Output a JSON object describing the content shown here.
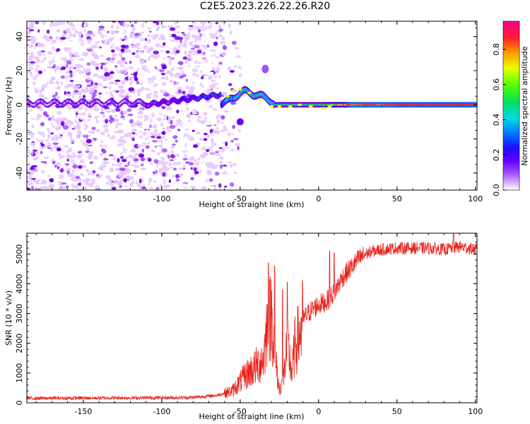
{
  "figure": {
    "title": "C2E5.2023.226.22.26.R20"
  },
  "colors": {
    "snr_line": "#e8201a",
    "axis": "#000000",
    "colormap": [
      "#ffffff",
      "#e6c8ff",
      "#a050ff",
      "#7000e8",
      "#2a00ff",
      "#0060ff",
      "#00d0ff",
      "#00e070",
      "#40ff00",
      "#e8ff00",
      "#ff8000",
      "#ff2040",
      "#ff0080"
    ]
  },
  "chart_data": [
    {
      "type": "heatmap",
      "title": "",
      "xlabel": "Height of straight line (km)",
      "ylabel": "Frequency (Hz)",
      "xlim": [
        -186,
        101
      ],
      "ylim": [
        -50,
        49
      ],
      "xticks": [
        -150,
        -100,
        -50,
        0,
        50,
        100
      ],
      "yticks": [
        -40,
        -20,
        0,
        20,
        40
      ],
      "colorbar": {
        "label": "Normalized spectral amplitude",
        "range": [
          0,
          0.96
        ],
        "ticks": [
          0.0,
          0.2,
          0.4,
          0.6,
          0.8
        ]
      },
      "features": {
        "noise_region_x": [
          -186,
          -62
        ],
        "noise_amplitude_range": [
          0.05,
          0.35
        ],
        "carrier_frequency_hz": 0,
        "carrier_amplitude_range_x": [
          [
            -100,
            0.2
          ],
          [
            -50,
            0.5
          ],
          [
            -30,
            0.55
          ],
          [
            0,
            0.6
          ],
          [
            20,
            0.85
          ],
          [
            100,
            0.92
          ]
        ],
        "wavy_segment_x": [
          -62,
          -28
        ],
        "wavy_segment_peak_freq_hz": 9,
        "echo_blob": {
          "x": -34,
          "freq_hz": 21
        },
        "echo_blob2": {
          "x": -50,
          "freq_hz": -10
        }
      }
    },
    {
      "type": "line",
      "title": "",
      "xlabel": "Height of straight line (km)",
      "ylabel": "SNR (10 * v/v)",
      "xlim": [
        -186,
        101
      ],
      "ylim": [
        0,
        5700
      ],
      "xticks": [
        -150,
        -100,
        -50,
        0,
        50,
        100
      ],
      "yticks": [
        0,
        1000,
        2000,
        3000,
        4000,
        5000
      ],
      "series": [
        {
          "name": "",
          "x": [
            -186,
            -150,
            -100,
            -80,
            -65,
            -55,
            -50,
            -45,
            -40,
            -35,
            -33,
            -30,
            -27,
            -25,
            -22,
            -20,
            -17,
            -15,
            -12,
            -10,
            -5,
            0,
            5,
            10,
            15,
            20,
            25,
            30,
            35,
            40,
            50,
            60,
            70,
            80,
            90,
            100
          ],
          "values": [
            150,
            160,
            170,
            180,
            250,
            400,
            700,
            1000,
            1200,
            1500,
            2500,
            3000,
            1200,
            400,
            1000,
            2000,
            1000,
            1900,
            2300,
            2800,
            3100,
            3300,
            3400,
            3700,
            4200,
            4500,
            4800,
            5000,
            5100,
            5150,
            5200,
            5200,
            5200,
            5150,
            5250,
            5150
          ]
        }
      ],
      "notable_spikes": [
        {
          "x": -32,
          "value": 4700
        },
        {
          "x": -28,
          "value": 4600
        },
        {
          "x": -23,
          "value": 3800
        },
        {
          "x": -20,
          "value": 4050
        },
        {
          "x": 7,
          "value": 5100
        },
        {
          "x": 10,
          "value": 5050
        },
        {
          "x": 86,
          "value": 5700
        }
      ]
    }
  ]
}
